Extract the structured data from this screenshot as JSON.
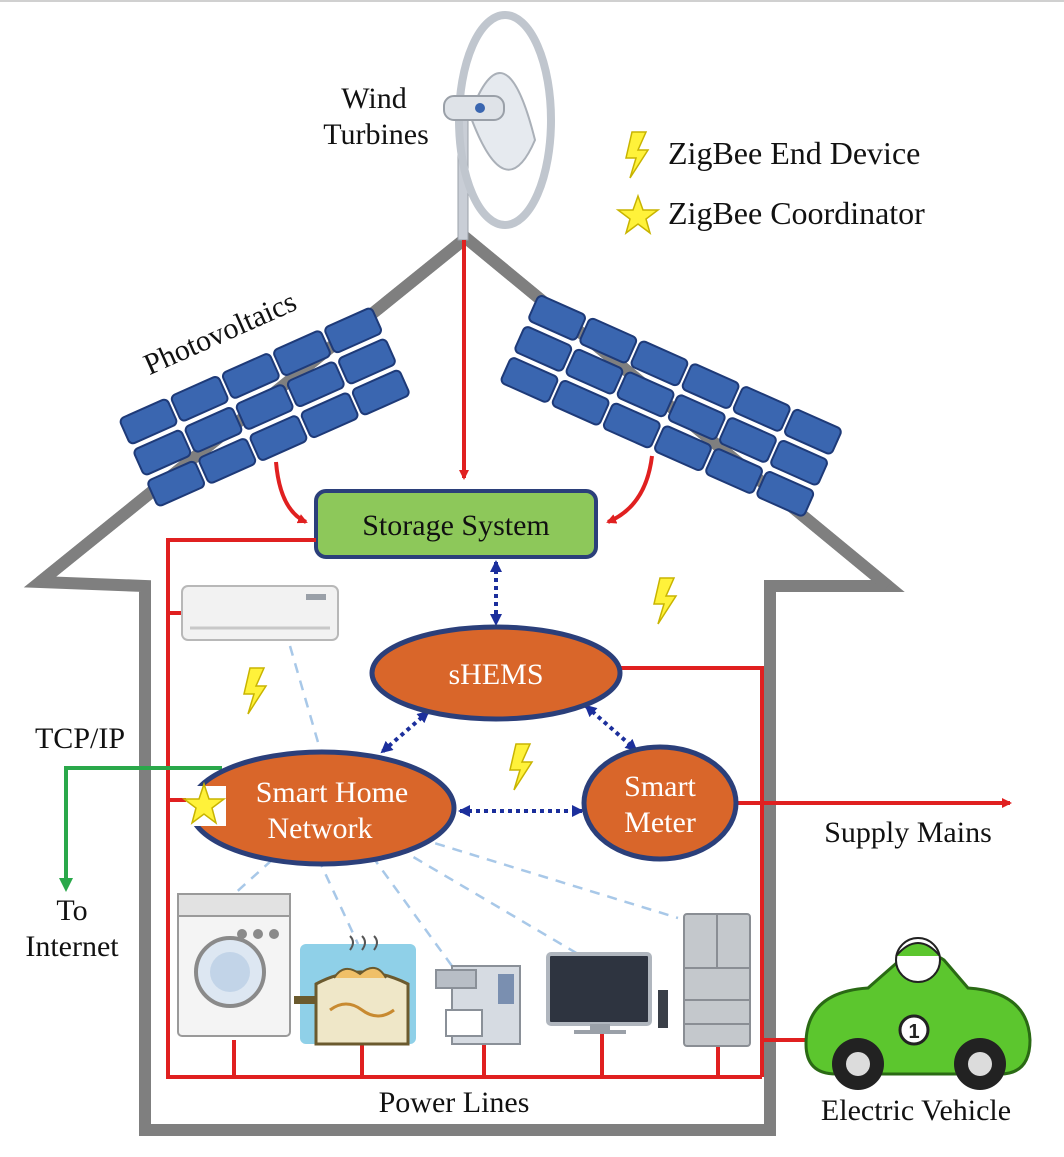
{
  "labels": {
    "wind_line1": "Wind",
    "wind_line2": "Turbines",
    "photovoltaics": "Photovoltaics",
    "storage": "Storage System",
    "shems": "sHEMS",
    "smart_home_line1": "Smart Home",
    "smart_home_line2": "Network",
    "smart_meter_line1": "Smart",
    "smart_meter_line2": "Meter",
    "tcpip": "TCP/IP",
    "to_internet_line1": "To",
    "to_internet_line2": "Internet",
    "supply_mains": "Supply Mains",
    "power_lines": "Power Lines",
    "electric_vehicle": "Electric Vehicle"
  },
  "legend": {
    "end_device": "ZigBee End Device",
    "coordinator": "ZigBee Coordinator"
  },
  "colors": {
    "power_line": "#e02020",
    "house_outline": "#7f7f7f",
    "solar_panel": "#3a66b0",
    "storage_fill": "#8dc85a",
    "node_fill": "#d9662a",
    "node_stroke": "#2b3f7a",
    "dashed_link": "#a8c8e8",
    "dotted_link": "#1c2f9c",
    "internet_link": "#2aa84a",
    "zigbee_bolt": "#fff23a",
    "ev_body": "#5cc62e"
  }
}
